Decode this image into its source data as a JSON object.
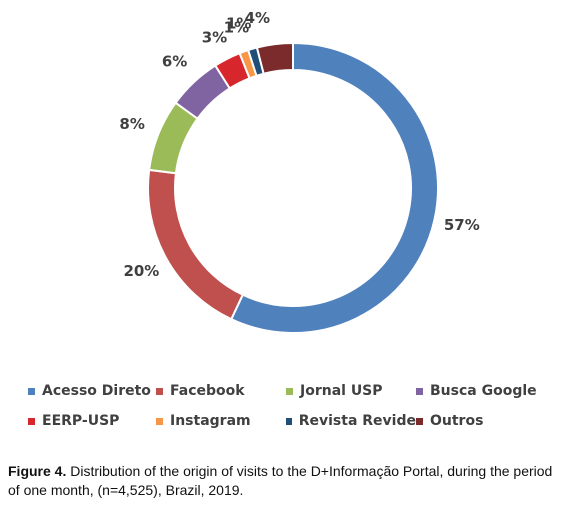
{
  "chart_data": {
    "type": "pie",
    "donut": true,
    "categories": [
      "Acesso Direto",
      "Facebook",
      "Jornal USP",
      "Busca Google",
      "EERP-USP",
      "Instagram",
      "Revista Revide",
      "Outros"
    ],
    "values": [
      57,
      20,
      8,
      6,
      3,
      1,
      1,
      4
    ],
    "labels": [
      "57%",
      "20%",
      "8%",
      "6%",
      "3%",
      "1%",
      "1%",
      "4%"
    ],
    "colors": [
      "#4f81bd",
      "#c0504d",
      "#9bbb59",
      "#8064a2",
      "#d7262c",
      "#f79646",
      "#1f4e79",
      "#7b2b2b"
    ],
    "legend_position": "bottom"
  },
  "caption": {
    "label": "Figure 4.",
    "text": " Distribution of the origin of visits to the D+Informação Portal, during the period of one month, (n=4,525), Brazil, 2019."
  }
}
